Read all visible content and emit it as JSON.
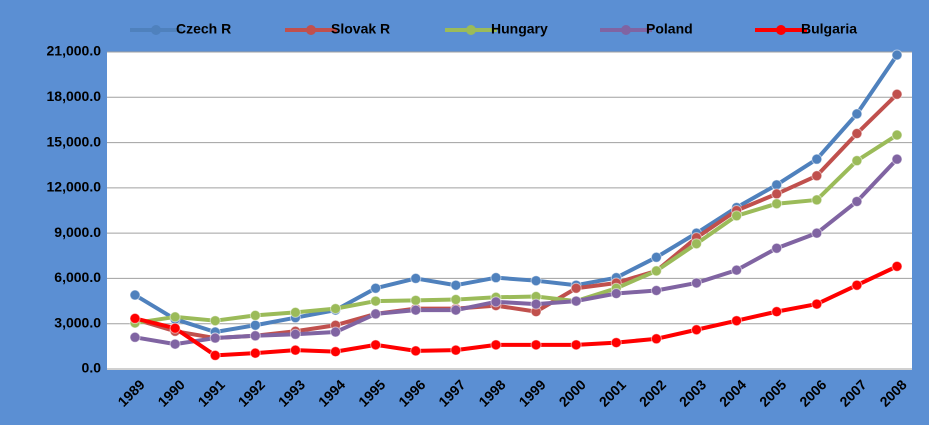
{
  "chart_data": {
    "type": "line",
    "categories": [
      "1989",
      "1990",
      "1991",
      "1992",
      "1993",
      "1994",
      "1995",
      "1996",
      "1997",
      "1998",
      "1999",
      "2000",
      "2001",
      "2002",
      "2003",
      "2004",
      "2005",
      "2006",
      "2007",
      "2008"
    ],
    "series": [
      {
        "name": "Czech R",
        "color": "#4f81bd",
        "values": [
          4900,
          3300,
          2450,
          2900,
          3400,
          3900,
          5350,
          6000,
          5550,
          6050,
          5850,
          5550,
          6050,
          7400,
          9000,
          10700,
          12200,
          13900,
          16900,
          20800
        ]
      },
      {
        "name": "Slovak R",
        "color": "#c0504d",
        "values": [
          3300,
          2500,
          2050,
          2200,
          2500,
          2900,
          3650,
          4000,
          4000,
          4200,
          3800,
          5350,
          5700,
          6500,
          8700,
          10500,
          11600,
          12800,
          15600,
          18200
        ]
      },
      {
        "name": "Hungary",
        "color": "#9bbb59",
        "values": [
          3050,
          3450,
          3200,
          3550,
          3750,
          4000,
          4500,
          4550,
          4600,
          4750,
          4800,
          4500,
          5350,
          6500,
          8300,
          10150,
          10950,
          11200,
          13800,
          15500
        ]
      },
      {
        "name": "Poland",
        "color": "#8064a2",
        "values": [
          2100,
          1650,
          2050,
          2200,
          2300,
          2450,
          3650,
          3900,
          3900,
          4450,
          4300,
          4500,
          5000,
          5200,
          5700,
          6550,
          8000,
          9000,
          11100,
          13900
        ]
      },
      {
        "name": "Bulgaria",
        "color": "#ff0000",
        "values": [
          3350,
          2700,
          900,
          1050,
          1250,
          1150,
          1600,
          1200,
          1250,
          1600,
          1600,
          1600,
          1750,
          2000,
          2600,
          3200,
          3800,
          4300,
          5550,
          6800
        ]
      }
    ],
    "ylim": [
      0,
      21000
    ],
    "yticks": [
      {
        "value": 0,
        "label": "0.0"
      },
      {
        "value": 3000,
        "label": "3,000.0"
      },
      {
        "value": 6000,
        "label": "6,000.0"
      },
      {
        "value": 9000,
        "label": "9,000.0"
      },
      {
        "value": 12000,
        "label": "12,000.0"
      },
      {
        "value": 15000,
        "label": "15,000.0"
      },
      {
        "value": 18000,
        "label": "18,000.0"
      },
      {
        "value": 21000,
        "label": "21,000.0"
      }
    ],
    "grid": true,
    "legend": "top"
  }
}
